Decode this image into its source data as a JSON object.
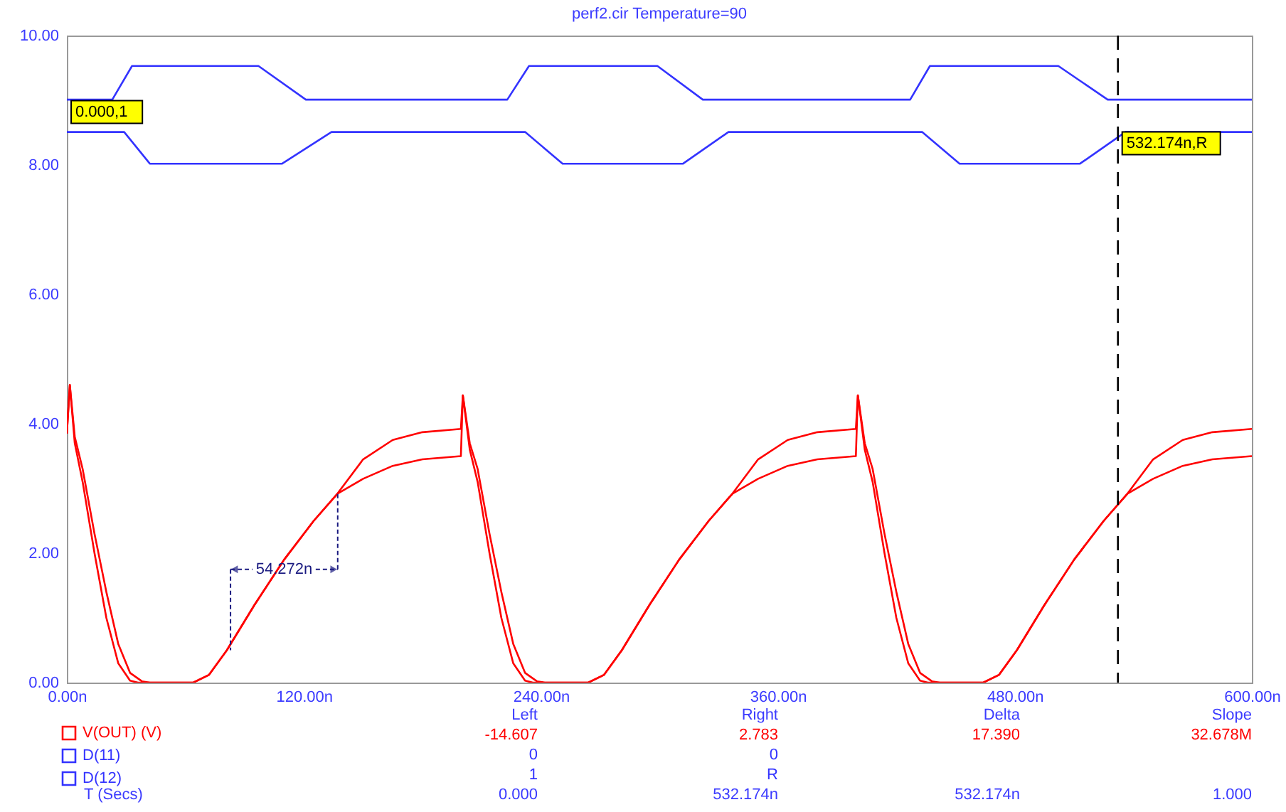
{
  "chart_data": {
    "type": "line",
    "title": "perf2.cir Temperature=90",
    "xlim": [
      0,
      600
    ],
    "ylim": [
      0,
      10
    ],
    "xticks": [
      {
        "value": 0,
        "label": "0.00n"
      },
      {
        "value": 120,
        "label": "120.00n"
      },
      {
        "value": 240,
        "label": "240.00n"
      },
      {
        "value": 360,
        "label": "360.00n"
      },
      {
        "value": 480,
        "label": "480.00n"
      },
      {
        "value": 600,
        "label": "600.00n"
      }
    ],
    "yticks": [
      {
        "value": 0,
        "label": "0.00"
      },
      {
        "value": 2,
        "label": "2.00"
      },
      {
        "value": 4,
        "label": "4.00"
      },
      {
        "value": 6,
        "label": "6.00"
      },
      {
        "value": 8,
        "label": "8.00"
      },
      {
        "value": 10,
        "label": "10.00"
      }
    ],
    "legend": "bottom left",
    "series": [
      {
        "name": "V(OUT) (V)",
        "color": "#ff0000",
        "x": [
          0,
          1.5,
          4,
          8,
          14,
          20,
          26,
          32,
          38,
          42,
          64,
          72,
          81,
          95,
          110,
          125,
          137,
          150,
          165,
          180,
          199.5,
          200.5,
          204,
          208,
          214,
          220,
          226,
          232,
          238,
          242,
          264,
          272,
          281,
          295,
          310,
          325,
          337,
          350,
          365,
          380,
          399.5,
          400.5,
          404,
          408,
          414,
          420,
          426,
          432,
          438,
          442,
          464,
          472,
          481,
          495,
          510,
          525,
          537,
          550,
          565,
          580,
          600
        ],
        "values": [
          3.85,
          4.6,
          3.8,
          3.3,
          2.3,
          1.4,
          0.6,
          0.15,
          0.02,
          0,
          0,
          0.12,
          0.5,
          1.2,
          1.9,
          2.5,
          2.92,
          3.45,
          3.75,
          3.87,
          3.92,
          4.44,
          3.7,
          3.3,
          2.3,
          1.4,
          0.6,
          0.15,
          0.02,
          0,
          0,
          0.12,
          0.5,
          1.2,
          1.9,
          2.5,
          2.92,
          3.45,
          3.75,
          3.87,
          3.92,
          4.44,
          3.7,
          3.3,
          2.3,
          1.4,
          0.6,
          0.15,
          0.02,
          0,
          0,
          0.12,
          0.5,
          1.2,
          1.9,
          2.5,
          2.92,
          3.45,
          3.75,
          3.87,
          3.92
        ]
      },
      {
        "color": "#ff0000",
        "x": [
          0,
          1.5,
          4,
          8,
          14,
          20,
          26,
          32,
          36,
          64,
          72,
          81,
          95,
          110,
          125,
          137,
          150,
          165,
          180,
          199.5,
          200.5,
          204,
          208,
          214,
          220,
          226,
          232,
          236,
          264,
          272,
          281,
          295,
          310,
          325,
          337,
          350,
          365,
          380,
          399.5,
          400.5,
          404,
          408,
          414,
          420,
          426,
          432,
          436,
          464,
          472,
          481,
          495,
          510,
          525,
          537,
          550,
          565,
          580,
          600
        ],
        "values": [
          3.85,
          4.6,
          3.7,
          3.1,
          2.0,
          1.0,
          0.3,
          0.03,
          0,
          0,
          0.12,
          0.5,
          1.2,
          1.9,
          2.5,
          2.92,
          3.15,
          3.35,
          3.45,
          3.5,
          4.44,
          3.6,
          3.1,
          2.0,
          1.0,
          0.3,
          0.03,
          0,
          0,
          0.12,
          0.5,
          1.2,
          1.9,
          2.5,
          2.92,
          3.15,
          3.35,
          3.45,
          3.5,
          4.44,
          3.6,
          3.1,
          2.0,
          1.0,
          0.3,
          0.03,
          0,
          0,
          0.12,
          0.5,
          1.2,
          1.9,
          2.5,
          2.92,
          3.15,
          3.35,
          3.45,
          3.5
        ]
      },
      {
        "name": "D(11)",
        "color": "#3333ff",
        "x": [
          0,
          23,
          33,
          97,
          121,
          223,
          234,
          299,
          322,
          427,
          437,
          502,
          527,
          600
        ],
        "values": [
          9.01,
          9.01,
          9.53,
          9.53,
          9.01,
          9.01,
          9.53,
          9.53,
          9.01,
          9.01,
          9.53,
          9.53,
          9.01,
          9.01
        ]
      },
      {
        "name": "D(12)",
        "color": "#3333ff",
        "x": [
          0,
          29,
          42,
          109,
          134,
          232,
          251,
          312,
          335,
          433,
          452,
          513,
          536,
          600
        ],
        "values": [
          8.51,
          8.51,
          8.02,
          8.02,
          8.51,
          8.51,
          8.02,
          8.02,
          8.51,
          8.51,
          8.02,
          8.02,
          8.51,
          8.51
        ]
      }
    ],
    "ref_lines": [
      {
        "axis": "x",
        "value": 532.174,
        "color": "#000000",
        "line_style": "dashed"
      }
    ],
    "annotations": [
      {
        "text": "54.272n",
        "x": 110,
        "y": 1.75
      },
      {
        "text": "0.000,1",
        "x": 0,
        "y": 8.51
      },
      {
        "text": "532.174n,R",
        "x": 532.174,
        "y": 8.51
      },
      "T (Secs)",
      "Left",
      "Right",
      "Delta",
      "Slope",
      "-14.607",
      "2.783",
      "17.390",
      "32.678M",
      "0",
      "0",
      "1",
      "R",
      "0.000",
      "532.174n",
      "532.174n",
      "1.000"
    ]
  }
}
